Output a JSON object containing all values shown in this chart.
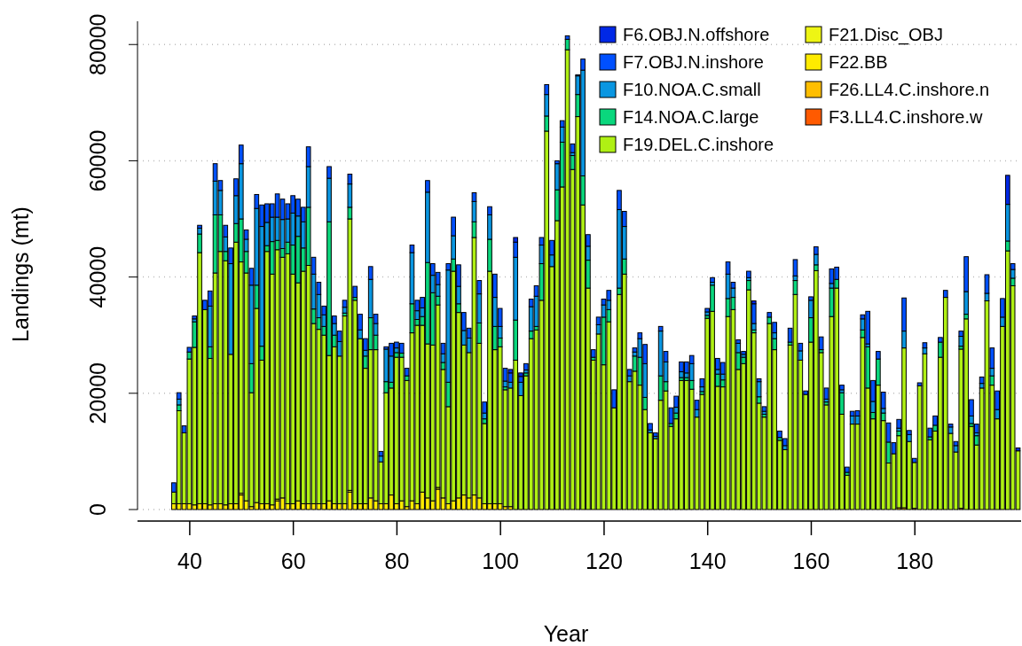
{
  "chart_data": {
    "type": "bar",
    "stacked": true,
    "xlabel": "Year",
    "ylabel": "Landings (mt)",
    "x": [
      37,
      38,
      39,
      40,
      41,
      42,
      43,
      44,
      45,
      46,
      47,
      48,
      49,
      50,
      51,
      52,
      53,
      54,
      55,
      56,
      57,
      58,
      59,
      60,
      61,
      62,
      63,
      64,
      65,
      66,
      67,
      68,
      69,
      70,
      71,
      72,
      73,
      74,
      75,
      76,
      77,
      78,
      79,
      80,
      81,
      82,
      83,
      84,
      85,
      86,
      87,
      88,
      89,
      90,
      91,
      92,
      93,
      94,
      95,
      96,
      97,
      98,
      99,
      100,
      101,
      102,
      103,
      104,
      105,
      106,
      107,
      108,
      109,
      110,
      111,
      112,
      113,
      114,
      115,
      116,
      117,
      118,
      119,
      120,
      121,
      122,
      123,
      124,
      125,
      126,
      127,
      128,
      129,
      130,
      131,
      132,
      133,
      134,
      135,
      136,
      137,
      138,
      139,
      140,
      141,
      142,
      143,
      144,
      145,
      146,
      147,
      148,
      149,
      150,
      151,
      152,
      153,
      154,
      155,
      156,
      157,
      158,
      159,
      160,
      161,
      162,
      163,
      164,
      165,
      166,
      167,
      168,
      169,
      170,
      171,
      172,
      173,
      174,
      175,
      176,
      177,
      178,
      179,
      180,
      181,
      182,
      183,
      184,
      185,
      186,
      187,
      188,
      189,
      190,
      191,
      192,
      193,
      194,
      195,
      196,
      197,
      198,
      199,
      200
    ],
    "xlim": [
      30,
      200.6
    ],
    "xticks": [
      40,
      60,
      80,
      100,
      120,
      140,
      160,
      180
    ],
    "ylim": [
      0,
      84000
    ],
    "yticks": [
      0,
      20000,
      40000,
      60000,
      80000
    ],
    "grid": "y",
    "legend": "top right",
    "series": [
      {
        "name": "F3.LL4.C.inshore.w",
        "color": "#ff5a00",
        "values": [
          0,
          0,
          0,
          0,
          0,
          0,
          0,
          0,
          0,
          0,
          0,
          0,
          0,
          0,
          0,
          0,
          0,
          0,
          0,
          0,
          0,
          0,
          0,
          0,
          0,
          0,
          0,
          0,
          0,
          0,
          0,
          0,
          0,
          0,
          0,
          0,
          0,
          0,
          0,
          0,
          0,
          0,
          0,
          0,
          0,
          0,
          0,
          0,
          0,
          0,
          0,
          0,
          0,
          0,
          0,
          0,
          0,
          0,
          0,
          0,
          0,
          0,
          0,
          0,
          0,
          0,
          0,
          0,
          0,
          0,
          0,
          0,
          0,
          0,
          0,
          0,
          0,
          0,
          0,
          0,
          0,
          0,
          0,
          0,
          0,
          0,
          0,
          0,
          0,
          0,
          0,
          0,
          0,
          0,
          0,
          0,
          0,
          0,
          0,
          0,
          0,
          0,
          0,
          0,
          0,
          0,
          0,
          0,
          0,
          0,
          0,
          0,
          0,
          0,
          0,
          0,
          0,
          0,
          0,
          0,
          0,
          0,
          0,
          0,
          0,
          0,
          0,
          0,
          0,
          0,
          0,
          0,
          0,
          0,
          0,
          0,
          0,
          0,
          0,
          0,
          0,
          0,
          0,
          0,
          0,
          0,
          0,
          0,
          0,
          0,
          0,
          0,
          0,
          0,
          0,
          0,
          0,
          0,
          0,
          0,
          0,
          0,
          0,
          0
        ]
      },
      {
        "name": "F26.LL4.C.inshore.n",
        "color": "#ffbe00",
        "values": [
          0,
          0,
          0,
          0,
          0,
          0,
          0,
          0,
          0,
          0,
          0,
          0,
          0,
          0,
          0,
          0,
          0,
          0,
          0,
          0,
          0,
          0,
          0,
          0,
          0,
          0,
          0,
          0,
          0,
          0,
          0,
          0,
          0,
          0,
          0,
          0,
          0,
          0,
          0,
          0,
          0,
          0,
          0,
          0,
          0,
          0,
          0,
          0,
          0,
          0,
          0,
          0,
          0,
          0,
          0,
          0,
          0,
          0,
          0,
          0,
          0,
          0,
          0,
          0,
          0,
          0,
          0,
          0,
          0,
          0,
          0,
          0,
          0,
          0,
          0,
          0,
          0,
          0,
          0,
          0,
          0,
          0,
          0,
          0,
          0,
          0,
          0,
          0,
          0,
          0,
          0,
          0,
          0,
          0,
          0,
          0,
          0,
          0,
          0,
          0,
          0,
          0,
          0,
          0,
          0,
          0,
          0,
          0,
          0,
          0,
          0,
          0,
          0,
          0,
          0,
          0,
          0,
          0,
          0,
          0,
          0,
          0,
          0,
          0,
          0,
          0,
          0,
          0,
          0,
          0,
          0,
          0,
          0,
          0,
          0,
          0,
          0,
          0,
          0,
          0,
          300,
          300,
          0,
          200,
          0,
          0,
          0,
          0,
          0,
          0,
          0,
          0,
          200,
          0,
          0,
          0,
          0,
          0,
          0,
          0,
          0,
          0,
          0,
          0
        ]
      },
      {
        "name": "F22.BB",
        "color": "#ffeb00",
        "values": [
          1000,
          1000,
          1000,
          1000,
          800,
          1000,
          1000,
          800,
          1000,
          1000,
          800,
          1000,
          1000,
          2500,
          1500,
          500,
          1200,
          1000,
          1000,
          800,
          1500,
          2000,
          1000,
          1000,
          1500,
          1000,
          1000,
          1000,
          1000,
          1000,
          1500,
          1000,
          1000,
          1000,
          3000,
          1000,
          1000,
          1000,
          2000,
          1500,
          1000,
          1000,
          2500,
          1000,
          1500,
          500,
          1500,
          1000,
          3000,
          2000,
          1500,
          3500,
          2000,
          1000,
          1500,
          2000,
          2500,
          2000,
          2500,
          2000,
          1000,
          1000,
          1000,
          1000,
          500,
          500,
          0,
          0,
          0,
          0,
          0,
          0,
          0,
          0,
          0,
          0,
          0,
          0,
          0,
          0,
          0,
          0,
          0,
          0,
          0,
          0,
          0,
          0,
          0,
          0,
          0,
          0,
          0,
          0,
          0,
          0,
          0,
          0,
          0,
          0,
          0,
          0,
          0,
          0,
          0,
          0,
          0,
          0,
          0,
          0,
          0,
          0,
          0,
          0,
          0,
          0,
          0,
          0,
          0,
          0,
          0,
          0,
          0,
          0,
          0,
          0,
          0,
          0,
          0,
          0,
          0,
          0,
          0,
          0,
          0,
          0,
          0,
          0,
          0,
          0,
          0,
          0,
          0,
          0,
          0,
          0,
          0,
          0,
          0,
          0,
          0,
          0,
          0,
          0,
          0,
          0,
          0,
          0,
          0,
          0,
          0,
          0,
          0,
          0
        ]
      },
      {
        "name": "F21.Disc_OBJ",
        "color": "#eef514",
        "values": [
          0,
          0,
          0,
          0,
          0,
          0,
          0,
          0,
          0,
          0,
          0,
          0,
          0,
          300,
          0,
          0,
          0,
          0,
          0,
          0,
          300,
          0,
          0,
          0,
          0,
          0,
          0,
          0,
          0,
          0,
          0,
          0,
          0,
          0,
          300,
          0,
          0,
          0,
          0,
          0,
          0,
          0,
          0,
          0,
          0,
          0,
          0,
          0,
          0,
          0,
          0,
          300,
          0,
          0,
          0,
          0,
          0,
          0,
          0,
          0,
          0,
          0,
          0,
          0,
          0,
          0,
          0,
          0,
          0,
          0,
          0,
          0,
          0,
          0,
          0,
          0,
          0,
          0,
          0,
          0,
          0,
          0,
          0,
          0,
          0,
          0,
          0,
          0,
          0,
          0,
          0,
          0,
          0,
          0,
          0,
          0,
          0,
          0,
          0,
          0,
          0,
          0,
          0,
          0,
          0,
          0,
          0,
          0,
          0,
          0,
          0,
          0,
          0,
          0,
          0,
          0,
          0,
          0,
          0,
          0,
          0,
          0,
          0,
          0,
          0,
          0,
          0,
          0,
          0,
          0,
          0,
          0,
          0,
          0,
          0,
          0,
          0,
          0,
          0,
          0,
          0,
          0,
          0,
          0,
          0,
          0,
          0,
          0,
          0,
          0,
          0,
          0,
          0,
          0,
          0,
          0,
          0,
          0,
          0,
          0,
          0,
          0,
          0,
          0
        ]
      },
      {
        "name": "F19.DEL.C.inshore",
        "color": "#aff014",
        "values": [
          2000,
          16000,
          12200,
          24900,
          27100,
          43200,
          33400,
          25200,
          39700,
          43400,
          42000,
          25700,
          45000,
          39800,
          39200,
          19600,
          33400,
          24700,
          43400,
          39700,
          42900,
          41400,
          43000,
          39500,
          37500,
          40000,
          41000,
          31000,
          30000,
          29000,
          25000,
          27000,
          25400,
          32300,
          46700,
          35000,
          28400,
          23300,
          25500,
          26000,
          7200,
          19100,
          18400,
          25200,
          24700,
          21700,
          28900,
          30700,
          28700,
          26500,
          26800,
          31400,
          22100,
          16700,
          39500,
          31900,
          25800,
          25000,
          44300,
          26600,
          13800,
          40000,
          26500,
          27000,
          20100,
          20400,
          25700,
          19600,
          23000,
          29400,
          30900,
          36000,
          65100,
          41800,
          49700,
          55500,
          79100,
          58500,
          67600,
          52400,
          38100,
          25700,
          30200,
          24900,
          32300,
          17500,
          37000,
          40500,
          22000,
          23800,
          21400,
          17200,
          13200,
          12200,
          18800,
          20400,
          14300,
          15600,
          22200,
          22200,
          20700,
          15900,
          19800,
          32900,
          34100,
          21200,
          21100,
          33200,
          34400,
          24100,
          25100,
          37800,
          30400,
          18300,
          15900,
          32000,
          27500,
          11900,
          10300,
          28300,
          37000,
          25700,
          19800,
          28800,
          41100,
          27000,
          18000,
          33200,
          38100,
          16400,
          5900,
          14700,
          14700,
          29600,
          20900,
          15600,
          21400,
          15300,
          8000,
          9600,
          12400,
          27500,
          11700,
          7900,
          21300,
          26800,
          12000,
          13500,
          26200,
          36500,
          13100,
          9900,
          27400,
          32800,
          14300,
          11100,
          20900,
          35900,
          21400,
          15600,
          31500,
          44500,
          38500,
          10100
        ]
      },
      {
        "name": "F14.NOA.C.large",
        "color": "#0ad77d",
        "values": [
          0,
          1000,
          0,
          1200,
          4400,
          3200,
          0,
          2000,
          10000,
          6300,
          1600,
          0,
          3200,
          7400,
          3700,
          5000,
          4000,
          2400,
          1000,
          5600,
          1600,
          1500,
          2000,
          5000,
          8000,
          4000,
          10000,
          2500,
          2000,
          1500,
          23000,
          2000,
          0,
          500,
          2000,
          500,
          0,
          2100,
          5500,
          2500,
          0,
          1900,
          1000,
          800,
          700,
          800,
          5000,
          1000,
          1500,
          14000,
          9000,
          1500,
          1200,
          4200,
          2100,
          1500,
          0,
          0,
          2700,
          3500,
          800,
          5500,
          4000,
          1500,
          500,
          0,
          6900,
          0,
          500,
          1300,
          600,
          6300,
          2600,
          0,
          5300,
          7700,
          1800,
          2400,
          3800,
          5000,
          4800,
          500,
          0,
          8200,
          2100,
          0,
          1100,
          2600,
          0,
          2600,
          4800,
          2100,
          0,
          0,
          4200,
          1600,
          500,
          1000,
          500,
          500,
          1500,
          0,
          500,
          500,
          4500,
          2100,
          1200,
          3100,
          2100,
          2900,
          1100,
          1600,
          500,
          1100,
          500,
          1100,
          1900,
          500,
          0,
          500,
          2400,
          0,
          0,
          4200,
          1000,
          500,
          500,
          4900,
          1500,
          3700,
          500,
          0,
          0,
          1300,
          7100,
          1100,
          4500,
          1300,
          3600,
          0,
          800,
          0,
          0,
          0,
          0,
          0,
          500,
          1000,
          2600,
          0,
          0,
          0,
          500,
          800,
          500,
          1600,
          0,
          0,
          1600,
          0,
          0,
          1700,
          1300,
          0
        ]
      },
      {
        "name": "F10.NOA.C.small",
        "color": "#0a96e1",
        "values": [
          0,
          1000,
          0,
          0,
          500,
          1000,
          0,
          7000,
          5800,
          4200,
          2500,
          15600,
          4800,
          9500,
          2100,
          13500,
          13200,
          20600,
          4000,
          4200,
          4000,
          5000,
          4000,
          5500,
          3500,
          4500,
          7000,
          6000,
          4000,
          2000,
          7500,
          2000,
          2500,
          1000,
          4000,
          0,
          1500,
          1000,
          6600,
          2000,
          1000,
          5600,
          4500,
          800,
          0,
          0,
          8800,
          1500,
          1500,
          12100,
          3000,
          2000,
          1500,
          19300,
          4000,
          3000,
          2500,
          2500,
          3500,
          5000,
          1000,
          4200,
          5000,
          2000,
          1000,
          1000,
          10800,
          2300,
          500,
          4200,
          5200,
          3200,
          3700,
          2000,
          4500,
          2600,
          0,
          500,
          3200,
          18200,
          2400,
          0,
          1600,
          2100,
          1600,
          0,
          13500,
          5600,
          1000,
          700,
          3200,
          5800,
          500,
          400,
          7700,
          3400,
          0,
          1000,
          1000,
          800,
          2900,
          1300,
          800,
          600,
          500,
          800,
          1000,
          4200,
          1600,
          1600,
          500,
          500,
          1100,
          2600,
          500,
          0,
          1000,
          0,
          700,
          0,
          800,
          1600,
          0,
          3000,
          1800,
          0,
          500,
          800,
          0,
          500,
          0,
          1400,
          1400,
          1900,
          500,
          1900,
          0,
          800,
          0,
          0,
          500,
          2900,
          1200,
          0,
          0,
          1000,
          0,
          0,
          0,
          0,
          1100,
          1100,
          1700,
          3900,
          1300,
          500,
          800,
          1300,
          1300,
          1600,
          1600,
          6300,
          1500,
          0
        ]
      },
      {
        "name": "F7.OBJ.N.inshore",
        "color": "#0050ff",
        "values": [
          1600,
          1100,
          1200,
          800,
          500,
          500,
          1600,
          2600,
          3000,
          1700,
          2000,
          2700,
          2900,
          3200,
          1600,
          2900,
          2400,
          3700,
          3200,
          2300,
          4000,
          3500,
          2600,
          3000,
          2900,
          2500,
          3400,
          2900,
          2100,
          1500,
          2000,
          1300,
          1800,
          1200,
          1700,
          1900,
          2700,
          2000,
          2200,
          1600,
          800,
          400,
          2200,
          1000,
          1700,
          1300,
          1300,
          1800,
          1800,
          2000,
          2000,
          2100,
          1800,
          1100,
          3200,
          3700,
          3100,
          1700,
          1500,
          2300,
          1900,
          1400,
          4000,
          3100,
          2200,
          1600,
          2600,
          1000,
          1100,
          1300,
          1800,
          1300,
          1700,
          2500,
          500,
          1100,
          600,
          1500,
          200,
          1900,
          2000,
          1300,
          1300,
          1000,
          1700,
          3100,
          3300,
          2600,
          1100,
          700,
          1000,
          3300,
          1100,
          600,
          800,
          1800,
          2700,
          1900,
          1700,
          1900,
          1400,
          1600,
          1400,
          600,
          800,
          1900,
          2000,
          2100,
          1000,
          600,
          500,
          1100,
          3400,
          500,
          800,
          800,
          1800,
          1100,
          1200,
          2400,
          2800,
          1300,
          600,
          600,
          1300,
          2200,
          1900,
          2500,
          2100,
          800,
          900,
          800,
          900,
          700,
          5600,
          3600,
          1300,
          2800,
          3300,
          1900,
          1500,
          5700,
          700,
          700,
          500,
          900,
          1500,
          1600,
          800,
          1200,
          500,
          700,
          900,
          6000,
          2800,
          1500,
          1100,
          3200,
          3500,
          3200,
          3200,
          null,
          1000,
          0
        ]
      },
      {
        "name": "F6.OBJ.N.offshore",
        "color": "#0028e6",
        "values": [
          0,
          0,
          0,
          0,
          0,
          0,
          0,
          0,
          0,
          0,
          0,
          0,
          0,
          0,
          0,
          0,
          0,
          0,
          0,
          0,
          0,
          0,
          0,
          0,
          0,
          0,
          0,
          0,
          0,
          0,
          0,
          0,
          0,
          0,
          0,
          0,
          0,
          0,
          0,
          0,
          0,
          0,
          0,
          0,
          0,
          0,
          0,
          0,
          0,
          0,
          0,
          0,
          0,
          0,
          0,
          0,
          0,
          0,
          0,
          0,
          0,
          0,
          0,
          0,
          0,
          600,
          800,
          600,
          0,
          0,
          0,
          0,
          0,
          0,
          0,
          0,
          0,
          0,
          0,
          0,
          0,
          0,
          0,
          0,
          0,
          0,
          0,
          0,
          0,
          0,
          0,
          0,
          0,
          0,
          0,
          0,
          0,
          0,
          0,
          0,
          0,
          0,
          0,
          0,
          0,
          0,
          0,
          0,
          0,
          0,
          0,
          0,
          500,
          0,
          0,
          0,
          0,
          0,
          0,
          0,
          0,
          0,
          0,
          0,
          0,
          0,
          0,
          0,
          0,
          0,
          0,
          0,
          0,
          0,
          0,
          0,
          0,
          0,
          0,
          0,
          0,
          0,
          0,
          0,
          0,
          0,
          0,
          0,
          0,
          0,
          0,
          0,
          0,
          0,
          0,
          0,
          0,
          0,
          0,
          0,
          0,
          5000,
          0,
          500
        ]
      }
    ]
  }
}
